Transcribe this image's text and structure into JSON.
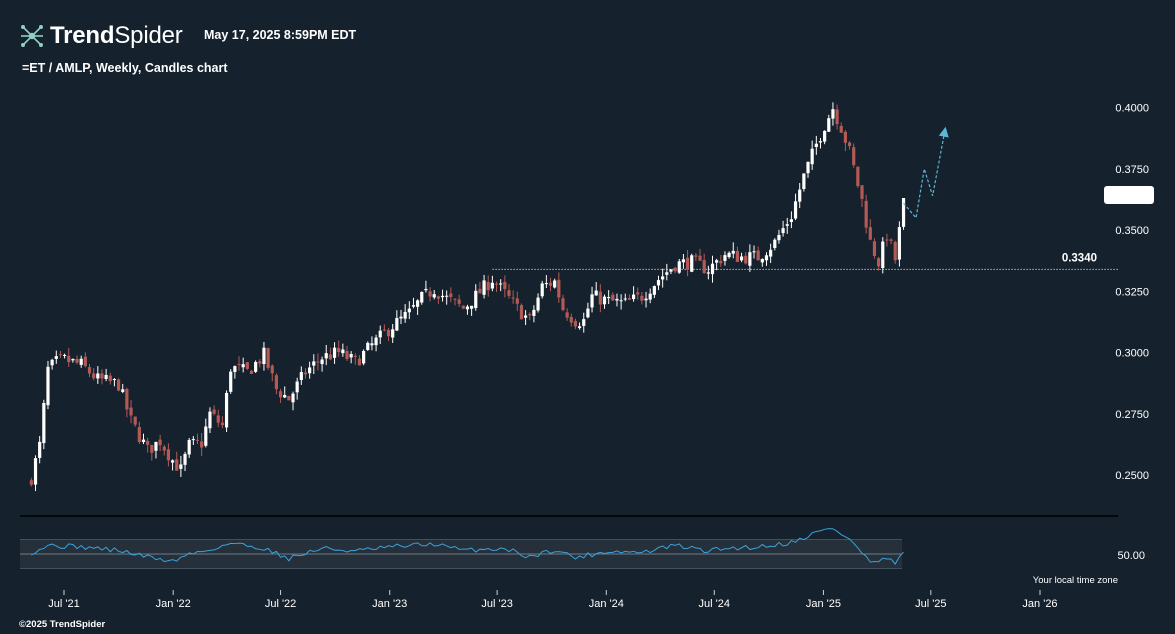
{
  "header": {
    "brand_bold": "Trend",
    "brand_light": "Spider",
    "datetime": "May 17, 2025 8:59PM EDT",
    "subtitle": "=ET / AMLP, Weekly, Candles chart"
  },
  "footer": {
    "copyright": "©2025 TrendSpider",
    "timezone_note": "Your local time zone"
  },
  "colors": {
    "background": "#15212d",
    "up_candle": "#ffffff",
    "down_candle": "#b35a55",
    "rsi_line": "#3ba3dd",
    "projection": "#5bb8d6",
    "grid_text": "#ffffff"
  },
  "chart_data": {
    "type": "candlestick",
    "timeframe": "Weekly",
    "y_ticks": [
      "0.2500",
      "0.2750",
      "0.3000",
      "0.3250",
      "0.3500",
      "0.3750",
      "0.4000"
    ],
    "y_range": [
      0.241,
      0.406
    ],
    "x_ticks": [
      "Jul '21",
      "Jan '22",
      "Jul '22",
      "Jan '23",
      "Jul '23",
      "Jan '24",
      "Jul '24",
      "Jan '25",
      "Jul '25",
      "Jan '26"
    ],
    "support_level": {
      "value": 0.334,
      "label": "0.3340"
    },
    "close_anchors": [
      [
        "2021-05-07",
        0.249
      ],
      [
        "2021-05-21",
        0.262
      ],
      [
        "2021-06-04",
        0.293
      ],
      [
        "2021-06-18",
        0.296
      ],
      [
        "2021-07-02",
        0.297
      ],
      [
        "2021-07-30",
        0.295
      ],
      [
        "2021-08-27",
        0.289
      ],
      [
        "2021-10-01",
        0.287
      ],
      [
        "2021-10-22",
        0.272
      ],
      [
        "2021-11-19",
        0.26
      ],
      [
        "2021-12-10",
        0.264
      ],
      [
        "2021-12-31",
        0.256
      ],
      [
        "2022-01-14",
        0.252
      ],
      [
        "2022-01-28",
        0.262
      ],
      [
        "2022-02-18",
        0.263
      ],
      [
        "2022-03-04",
        0.275
      ],
      [
        "2022-03-25",
        0.27
      ],
      [
        "2022-04-08",
        0.294
      ],
      [
        "2022-05-06",
        0.292
      ],
      [
        "2022-06-03",
        0.299
      ],
      [
        "2022-06-24",
        0.285
      ],
      [
        "2022-07-15",
        0.281
      ],
      [
        "2022-08-12",
        0.292
      ],
      [
        "2022-09-09",
        0.298
      ],
      [
        "2022-10-07",
        0.3
      ],
      [
        "2022-11-04",
        0.296
      ],
      [
        "2022-12-02",
        0.303
      ],
      [
        "2023-01-06",
        0.311
      ],
      [
        "2023-02-03",
        0.316
      ],
      [
        "2023-02-24",
        0.322
      ],
      [
        "2023-03-17",
        0.326
      ],
      [
        "2023-04-07",
        0.322
      ],
      [
        "2023-05-05",
        0.318
      ],
      [
        "2023-05-26",
        0.323
      ],
      [
        "2023-06-23",
        0.33
      ],
      [
        "2023-07-14",
        0.324
      ],
      [
        "2023-08-04",
        0.318
      ],
      [
        "2023-08-25",
        0.313
      ],
      [
        "2023-09-15",
        0.327
      ],
      [
        "2023-10-06",
        0.329
      ],
      [
        "2023-10-20",
        0.318
      ],
      [
        "2023-11-10",
        0.313
      ],
      [
        "2023-11-24",
        0.313
      ],
      [
        "2023-12-08",
        0.323
      ],
      [
        "2024-01-05",
        0.321
      ],
      [
        "2024-02-02",
        0.32
      ],
      [
        "2024-03-01",
        0.323
      ],
      [
        "2024-03-29",
        0.33
      ],
      [
        "2024-04-26",
        0.336
      ],
      [
        "2024-05-24",
        0.337
      ],
      [
        "2024-06-21",
        0.334
      ],
      [
        "2024-07-19",
        0.34
      ],
      [
        "2024-08-16",
        0.339
      ],
      [
        "2024-09-13",
        0.339
      ],
      [
        "2024-10-11",
        0.345
      ],
      [
        "2024-11-08",
        0.356
      ],
      [
        "2024-11-29",
        0.372
      ],
      [
        "2024-12-20",
        0.385
      ],
      [
        "2025-01-03",
        0.393
      ],
      [
        "2025-01-17",
        0.4
      ],
      [
        "2025-01-31",
        0.392
      ],
      [
        "2025-02-14",
        0.382
      ],
      [
        "2025-03-07",
        0.362
      ],
      [
        "2025-03-21",
        0.345
      ],
      [
        "2025-04-04",
        0.337
      ],
      [
        "2025-04-18",
        0.348
      ],
      [
        "2025-05-02",
        0.338
      ],
      [
        "2025-05-16",
        0.361
      ]
    ],
    "projection": [
      [
        "2025-05-16",
        0.361
      ],
      [
        "2025-06-06",
        0.355
      ],
      [
        "2025-06-20",
        0.375
      ],
      [
        "2025-07-04",
        0.364
      ],
      [
        "2025-07-25",
        0.391
      ]
    ],
    "rsi": {
      "label": "50.00",
      "level": 50,
      "band": [
        30,
        70
      ],
      "anchors": [
        [
          "2021-05-07",
          52
        ],
        [
          "2021-06-04",
          62
        ],
        [
          "2021-07-30",
          60
        ],
        [
          "2021-10-01",
          55
        ],
        [
          "2021-11-19",
          46
        ],
        [
          "2021-12-31",
          40
        ],
        [
          "2022-01-28",
          50
        ],
        [
          "2022-03-04",
          56
        ],
        [
          "2022-04-08",
          65
        ],
        [
          "2022-06-03",
          58
        ],
        [
          "2022-07-15",
          44
        ],
        [
          "2022-09-09",
          58
        ],
        [
          "2022-11-04",
          54
        ],
        [
          "2023-01-06",
          60
        ],
        [
          "2023-03-17",
          64
        ],
        [
          "2023-05-05",
          55
        ],
        [
          "2023-07-14",
          58
        ],
        [
          "2023-08-25",
          46
        ],
        [
          "2023-10-06",
          56
        ],
        [
          "2023-11-10",
          45
        ],
        [
          "2024-01-05",
          54
        ],
        [
          "2024-03-01",
          52
        ],
        [
          "2024-04-26",
          62
        ],
        [
          "2024-06-21",
          54
        ],
        [
          "2024-07-19",
          58
        ],
        [
          "2024-09-13",
          60
        ],
        [
          "2024-11-08",
          66
        ],
        [
          "2024-12-20",
          80
        ],
        [
          "2025-01-17",
          86
        ],
        [
          "2025-02-14",
          70
        ],
        [
          "2025-03-07",
          52
        ],
        [
          "2025-03-21",
          38
        ],
        [
          "2025-04-18",
          42
        ],
        [
          "2025-05-02",
          38
        ],
        [
          "2025-05-16",
          50
        ]
      ]
    }
  }
}
